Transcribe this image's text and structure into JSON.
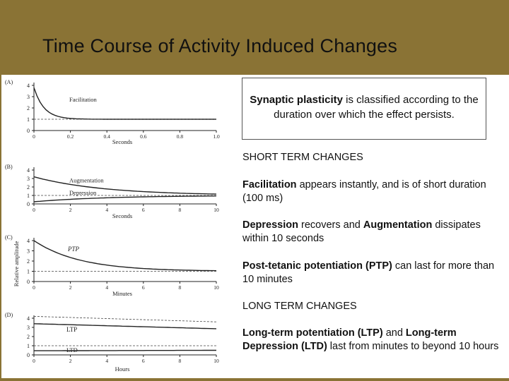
{
  "title": "Time Course of Activity Induced Changes",
  "figure": {
    "y_axis_label": "Relative amplitude",
    "panels": [
      {
        "tag": "(A)",
        "y_ticks": [
          "0",
          "1",
          "2",
          "3",
          "4"
        ],
        "x_ticks": [
          "0",
          "0.2",
          "0.4",
          "0.6",
          "0.8",
          "1.0"
        ],
        "x_label": "Seconds",
        "curve_labels": [
          "Facilitation"
        ]
      },
      {
        "tag": "(B)",
        "y_ticks": [
          "0",
          "1",
          "2",
          "3",
          "4"
        ],
        "x_ticks": [
          "0",
          "2",
          "4",
          "6",
          "8",
          "10"
        ],
        "x_label": "Seconds",
        "curve_labels": [
          "Augmentation",
          "Depression"
        ]
      },
      {
        "tag": "(C)",
        "y_ticks": [
          "0",
          "1",
          "2",
          "3",
          "4"
        ],
        "x_ticks": [
          "0",
          "2",
          "4",
          "6",
          "8",
          "10"
        ],
        "x_label": "Minutes",
        "curve_labels": [
          "PTP"
        ]
      },
      {
        "tag": "(D)",
        "y_ticks": [
          "0",
          "1",
          "2",
          "3",
          "4"
        ],
        "x_ticks": [
          "0",
          "2",
          "4",
          "6",
          "8",
          "10"
        ],
        "x_label": "Hours",
        "curve_labels": [
          "LTP",
          "LTD"
        ]
      }
    ]
  },
  "box": {
    "bold": "Synaptic plasticity",
    "rest": " is classified according to the duration over which the effect persists."
  },
  "short_term_heading": "SHORT TERM CHANGES",
  "facilitation": {
    "bold": "Facilitation",
    "rest": " appears instantly, and is of short duration (100 ms)"
  },
  "depression": {
    "bold1": "Depression",
    "mid": " recovers and ",
    "bold2": "Augmentation",
    "rest": " dissipates within 10 seconds"
  },
  "ptp": {
    "bold": "Post-tetanic potentiation (PTP)",
    "rest": " can last for more than 10 minutes"
  },
  "long_term_heading": "LONG TERM CHANGES",
  "ltp": {
    "bold1": "Long-term potentiation (LTP)",
    "mid": " and ",
    "bold2": "Long-term Depression (LTD)",
    "rest": " last from minutes to beyond 10 hours"
  }
}
